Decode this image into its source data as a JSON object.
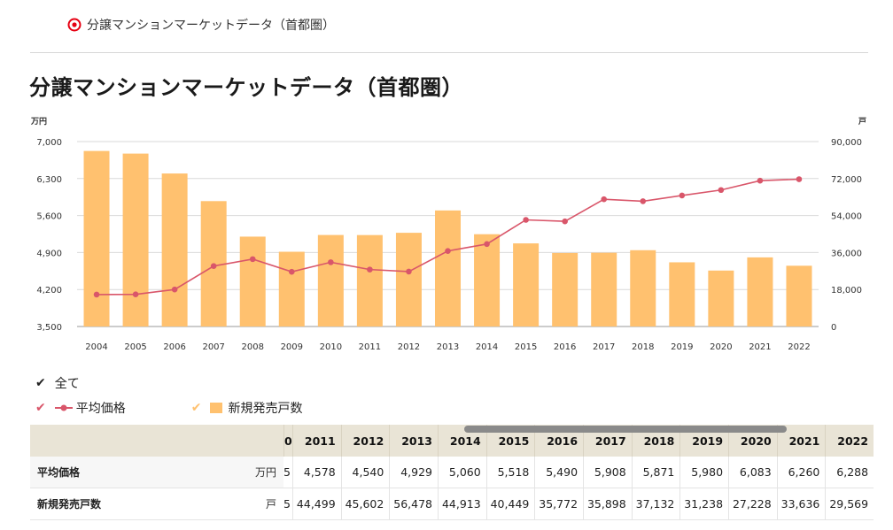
{
  "breadcrumb": {
    "label": "分譲マンションマーケットデータ（首都圏）"
  },
  "page": {
    "title": "分譲マンションマーケットデータ（首都圏）"
  },
  "colors": {
    "bar": "#ffc16f",
    "line": "#d9566a",
    "accent": "#e60012",
    "header_bg": "#e9e4d6"
  },
  "chart_data": {
    "type": "bar+line",
    "categories": [
      "2004",
      "2005",
      "2006",
      "2007",
      "2008",
      "2009",
      "2010",
      "2011",
      "2012",
      "2013",
      "2014",
      "2015",
      "2016",
      "2017",
      "2018",
      "2019",
      "2020",
      "2021",
      "2022"
    ],
    "series": [
      {
        "name": "新規発売戸数",
        "type": "bar",
        "axis": "right",
        "values": [
          85429,
          84148,
          74463,
          61021,
          43733,
          36376,
          44535,
          44499,
          45602,
          56478,
          44913,
          40449,
          35772,
          35898,
          37132,
          31238,
          27228,
          33636,
          29569
        ]
      },
      {
        "name": "平均価格",
        "type": "line",
        "axis": "left",
        "values": [
          4104,
          4108,
          4200,
          4644,
          4775,
          4535,
          4716,
          4578,
          4540,
          4929,
          5060,
          5518,
          5490,
          5908,
          5871,
          5980,
          6083,
          6260,
          6288
        ]
      }
    ],
    "left_axis": {
      "unit": "万円",
      "min": 3500,
      "max": 7000,
      "ticks": [
        "3,500",
        "4,200",
        "4,900",
        "5,600",
        "6,300",
        "7,000"
      ]
    },
    "right_axis": {
      "unit": "戸",
      "min": 0,
      "max": 90000,
      "ticks": [
        "0",
        "18,000",
        "36,000",
        "54,000",
        "72,000",
        "90,000"
      ]
    },
    "grid": true
  },
  "legend": {
    "all_label": "全て",
    "line_label": "平均価格",
    "bar_label": "新規発売戸数"
  },
  "table": {
    "cut_header": "0",
    "years": [
      "2011",
      "2012",
      "2013",
      "2014",
      "2015",
      "2016",
      "2017",
      "2018",
      "2019",
      "2020",
      "2021",
      "2022"
    ],
    "rows": [
      {
        "label": "平均価格",
        "unit": "万円",
        "cut": "5",
        "values": [
          "4,578",
          "4,540",
          "4,929",
          "5,060",
          "5,518",
          "5,490",
          "5,908",
          "5,871",
          "5,980",
          "6,083",
          "6,260",
          "6,288"
        ]
      },
      {
        "label": "新規発売戸数",
        "unit": "戸",
        "cut": "5",
        "values": [
          "44,499",
          "45,602",
          "56,478",
          "44,913",
          "40,449",
          "35,772",
          "35,898",
          "37,132",
          "31,238",
          "27,228",
          "33,636",
          "29,569"
        ]
      }
    ]
  }
}
